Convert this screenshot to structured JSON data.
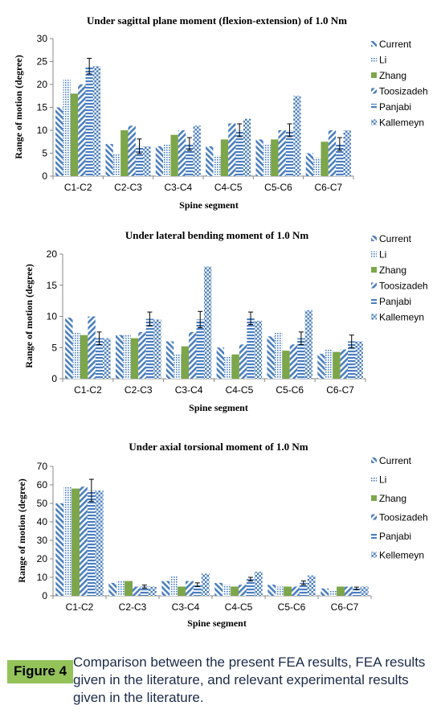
{
  "chart_data": [
    {
      "type": "bar",
      "title": "Under sagittal plane moment (flexion-extension) of 1.0 Nm",
      "xlabel": "Spine segment",
      "ylabel": "Range of motion (degree)",
      "ylim": [
        0,
        30
      ],
      "yticks": [
        "0",
        "5",
        "10",
        "15",
        "20",
        "25",
        "30"
      ],
      "categories": [
        "C1-C2",
        "C2-C3",
        "C3-C4",
        "C4-C5",
        "C5-C6",
        "C6-C7"
      ],
      "legend_position": "right",
      "series": [
        {
          "name": "Current",
          "values": [
            15,
            7,
            6.5,
            6.5,
            8,
            5
          ]
        },
        {
          "name": "Li",
          "values": [
            21,
            5,
            7,
            4.5,
            7,
            4
          ]
        },
        {
          "name": "Zhang",
          "values": [
            18,
            10,
            9,
            8,
            8,
            7.5
          ]
        },
        {
          "name": "Toosizadeh",
          "values": [
            20,
            11,
            10,
            11.5,
            10,
            10
          ]
        },
        {
          "name": "Panjabi",
          "values": [
            24,
            6.5,
            7,
            10,
            10,
            7
          ]
        },
        {
          "name": "Kallemeyn",
          "values": [
            24,
            6.5,
            11,
            12.5,
            17.5,
            10
          ]
        }
      ],
      "error_bars": [
        {
          "series": "Panjabi",
          "category": "C1-C2",
          "low": 22.3,
          "high": 25.7
        },
        {
          "series": "Panjabi",
          "category": "C2-C3",
          "low": 4.9,
          "high": 8.1
        },
        {
          "series": "Panjabi",
          "category": "C3-C4",
          "low": 5.6,
          "high": 8.4
        },
        {
          "series": "Panjabi",
          "category": "C4-C5",
          "low": 8.6,
          "high": 11.4
        },
        {
          "series": "Panjabi",
          "category": "C5-C6",
          "low": 8.6,
          "high": 11.4
        },
        {
          "series": "Panjabi",
          "category": "C6-C7",
          "low": 5.6,
          "high": 8.4
        }
      ]
    },
    {
      "type": "bar",
      "title": "Under lateral bending moment of 1.0 Nm",
      "xlabel": "Spine segment",
      "ylabel": "Range of motion (degree)",
      "ylim": [
        0,
        20
      ],
      "yticks": [
        "0",
        "5",
        "10",
        "15",
        "20"
      ],
      "categories": [
        "C1-C2",
        "C2-C3",
        "C3-C4",
        "C4-C5",
        "C5-C6",
        "C6-C7"
      ],
      "legend_position": "right",
      "series": [
        {
          "name": "Current",
          "values": [
            9.8,
            7,
            6,
            5,
            6.8,
            4
          ]
        },
        {
          "name": "Li",
          "values": [
            7.5,
            7,
            4,
            3.5,
            7.5,
            4.7
          ]
        },
        {
          "name": "Zhang",
          "values": [
            7,
            6.5,
            5.2,
            3.9,
            4.5,
            4.3
          ]
        },
        {
          "name": "Toosizadeh",
          "values": [
            10,
            7.5,
            7.5,
            5.5,
            5.5,
            4.7
          ]
        },
        {
          "name": "Panjabi",
          "values": [
            6.5,
            9.6,
            9.5,
            9.7,
            6.5,
            6
          ]
        },
        {
          "name": "Kallemeyn",
          "values": [
            6.5,
            9.5,
            18,
            9.3,
            11,
            6
          ]
        }
      ],
      "error_bars": [
        {
          "series": "Panjabi",
          "category": "C1-C2",
          "low": 5.5,
          "high": 7.5
        },
        {
          "series": "Panjabi",
          "category": "C2-C3",
          "low": 8.5,
          "high": 10.7
        },
        {
          "series": "Panjabi",
          "category": "C3-C4",
          "low": 8.2,
          "high": 10.8
        },
        {
          "series": "Panjabi",
          "category": "C4-C5",
          "low": 8.7,
          "high": 10.7
        },
        {
          "series": "Panjabi",
          "category": "C5-C6",
          "low": 5.5,
          "high": 7.5
        },
        {
          "series": "Panjabi",
          "category": "C6-C7",
          "low": 5,
          "high": 7
        }
      ]
    },
    {
      "type": "bar",
      "title": "Under axial torsional moment of 1.0 Nm",
      "xlabel": "Spine segment",
      "ylabel": "Range of motion (degree)",
      "ylim": [
        0,
        70
      ],
      "yticks": [
        "0",
        "10",
        "20",
        "30",
        "40",
        "50",
        "60",
        "70"
      ],
      "categories": [
        "C1-C2",
        "C2-C3",
        "C3-C4",
        "C4-C5",
        "C5-C6",
        "C6-C7"
      ],
      "legend_position": "right",
      "series": [
        {
          "name": "Current",
          "values": [
            50,
            7,
            8,
            7,
            6,
            4
          ]
        },
        {
          "name": "Li",
          "values": [
            59,
            8,
            11,
            6,
            5,
            3
          ]
        },
        {
          "name": "Zhang",
          "values": [
            58,
            8,
            5,
            5,
            5,
            5
          ]
        },
        {
          "name": "Toosizadeh",
          "values": [
            59,
            5,
            8,
            6,
            5,
            5
          ]
        },
        {
          "name": "Panjabi",
          "values": [
            57,
            5,
            6,
            9,
            7,
            4
          ]
        },
        {
          "name": "Kellemeyn",
          "values": [
            57,
            5,
            12,
            13,
            11,
            5
          ]
        }
      ],
      "error_bars": [
        {
          "series": "Panjabi",
          "category": "C1-C2",
          "low": 51,
          "high": 63
        },
        {
          "series": "Panjabi",
          "category": "C2-C3",
          "low": 4.2,
          "high": 5.8
        },
        {
          "series": "Panjabi",
          "category": "C3-C4",
          "low": 5,
          "high": 7
        },
        {
          "series": "Panjabi",
          "category": "C4-C5",
          "low": 8,
          "high": 10
        },
        {
          "series": "Panjabi",
          "category": "C5-C6",
          "low": 6,
          "high": 8
        },
        {
          "series": "Panjabi",
          "category": "C6-C7",
          "low": 3.3,
          "high": 4.7
        }
      ]
    }
  ],
  "series_styles": [
    {
      "color": "#4a7ec0",
      "pattern": "diag-left"
    },
    {
      "color": "#4a7ec0",
      "pattern": "dots"
    },
    {
      "color": "#7da64a",
      "pattern": "solid"
    },
    {
      "color": "#4a7ec0",
      "pattern": "diag-right"
    },
    {
      "color": "#4a7ec0",
      "pattern": "horizontal"
    },
    {
      "color": "#4a7ec0",
      "pattern": "checker"
    }
  ],
  "caption": {
    "label": "Figure 4",
    "text": "Comparison between the present FEA results, FEA results given in the literature, and relevant experimental results given in the literature."
  }
}
